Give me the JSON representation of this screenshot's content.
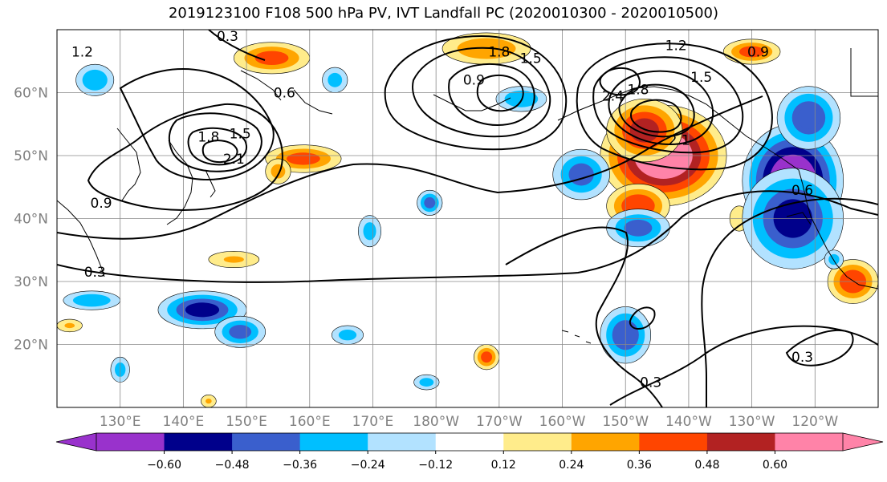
{
  "title": "2019123100 F108 500 hPa PV, IVT Landfall PC (2020010300 - 2020010500)",
  "map": {
    "projection": "PlateCarree",
    "lon_range": [
      120,
      250
    ],
    "lat_range": [
      10,
      70
    ],
    "gridlines": true,
    "lat_ticks": [
      {
        "value": 20,
        "label": "20°N"
      },
      {
        "value": 30,
        "label": "30°N"
      },
      {
        "value": 40,
        "label": "40°N"
      },
      {
        "value": 50,
        "label": "50°N"
      },
      {
        "value": 60,
        "label": "60°N"
      }
    ],
    "lon_ticks": [
      {
        "value": 130,
        "label": "130°E"
      },
      {
        "value": 140,
        "label": "140°E"
      },
      {
        "value": 150,
        "label": "150°E"
      },
      {
        "value": 160,
        "label": "160°E"
      },
      {
        "value": 170,
        "label": "170°E"
      },
      {
        "value": 180,
        "label": "180°W"
      },
      {
        "value": 190,
        "label": "170°W"
      },
      {
        "value": 200,
        "label": "160°W"
      },
      {
        "value": 210,
        "label": "150°W"
      },
      {
        "value": 220,
        "label": "140°W"
      },
      {
        "value": 230,
        "label": "130°W"
      },
      {
        "value": 240,
        "label": "120°W"
      }
    ]
  },
  "colorbar": {
    "levels": [
      -0.72,
      -0.6,
      -0.48,
      -0.36,
      -0.24,
      -0.12,
      0.12,
      0.24,
      0.36,
      0.48,
      0.6,
      0.72
    ],
    "colors": [
      "#9932CC",
      "#00008B",
      "#3A5FCD",
      "#00BFFF",
      "#B2E2FF",
      "#FFFFFF",
      "#FFEC8B",
      "#FFA500",
      "#FF4500",
      "#B22222",
      "#FF83A8"
    ],
    "extend_min_color": "#9932CC",
    "extend_max_color": "#FF83A8",
    "tick_labels": [
      {
        "value": -0.6,
        "label": "−0.60"
      },
      {
        "value": -0.48,
        "label": "−0.48"
      },
      {
        "value": -0.36,
        "label": "−0.36"
      },
      {
        "value": -0.24,
        "label": "−0.24"
      },
      {
        "value": -0.12,
        "label": "−0.12"
      },
      {
        "value": 0.12,
        "label": "0.12"
      },
      {
        "value": 0.24,
        "label": "0.24"
      },
      {
        "value": 0.36,
        "label": "0.36"
      },
      {
        "value": 0.48,
        "label": "0.48"
      },
      {
        "value": 0.6,
        "label": "0.60"
      }
    ]
  },
  "ivt_anomaly_blobs": [
    {
      "lon": 216,
      "lat": 50,
      "rx": 10,
      "ry": 8,
      "value": 0.7
    },
    {
      "lon": 213,
      "lat": 54,
      "rx": 6,
      "ry": 5,
      "value": 0.5
    },
    {
      "lon": 212,
      "lat": 42,
      "rx": 5,
      "ry": 3.5,
      "value": 0.45
    },
    {
      "lon": 159,
      "lat": 49.5,
      "rx": 6,
      "ry": 2.2,
      "value": 0.4
    },
    {
      "lon": 154,
      "lat": 65.5,
      "rx": 6,
      "ry": 2.5,
      "value": 0.4
    },
    {
      "lon": 188,
      "lat": 67,
      "rx": 7,
      "ry": 2.5,
      "value": 0.35
    },
    {
      "lon": 230,
      "lat": 66.5,
      "rx": 4.5,
      "ry": 2,
      "value": 0.4
    },
    {
      "lon": 246,
      "lat": 30,
      "rx": 4,
      "ry": 3.5,
      "value": 0.45
    },
    {
      "lon": 188,
      "lat": 18,
      "rx": 2,
      "ry": 2,
      "value": 0.4
    },
    {
      "lon": 155,
      "lat": 47.5,
      "rx": 2,
      "ry": 2,
      "value": 0.3
    },
    {
      "lon": 148,
      "lat": 33.5,
      "rx": 4,
      "ry": 1.3,
      "value": 0.25
    },
    {
      "lon": 122,
      "lat": 23,
      "rx": 2,
      "ry": 1,
      "value": 0.25
    },
    {
      "lon": 144,
      "lat": 11,
      "rx": 1.2,
      "ry": 1,
      "value": 0.25
    },
    {
      "lon": 228,
      "lat": 40,
      "rx": 1.5,
      "ry": 2,
      "value": 0.2
    },
    {
      "lon": 236.5,
      "lat": 46,
      "rx": 8,
      "ry": 9,
      "value": -0.7
    },
    {
      "lon": 236.5,
      "lat": 40,
      "rx": 8,
      "ry": 8,
      "value": -0.5
    },
    {
      "lon": 239,
      "lat": 56,
      "rx": 5,
      "ry": 5,
      "value": -0.45
    },
    {
      "lon": 203,
      "lat": 47,
      "rx": 4.5,
      "ry": 4,
      "value": -0.4
    },
    {
      "lon": 212,
      "lat": 38.5,
      "rx": 5,
      "ry": 3,
      "value": -0.4
    },
    {
      "lon": 210,
      "lat": 21.5,
      "rx": 4,
      "ry": 4.5,
      "value": -0.45
    },
    {
      "lon": 143,
      "lat": 25.5,
      "rx": 7,
      "ry": 3,
      "value": -0.5
    },
    {
      "lon": 149,
      "lat": 22,
      "rx": 4,
      "ry": 2.5,
      "value": -0.4
    },
    {
      "lon": 125.5,
      "lat": 27,
      "rx": 4.5,
      "ry": 1.5,
      "value": -0.35
    },
    {
      "lon": 126,
      "lat": 62,
      "rx": 3,
      "ry": 2.5,
      "value": -0.35
    },
    {
      "lon": 193.5,
      "lat": 59,
      "rx": 4,
      "ry": 2,
      "value": -0.35
    },
    {
      "lon": 164,
      "lat": 62,
      "rx": 2,
      "ry": 2,
      "value": -0.3
    },
    {
      "lon": 179,
      "lat": 42.5,
      "rx": 2,
      "ry": 2,
      "value": -0.4
    },
    {
      "lon": 169.5,
      "lat": 38,
      "rx": 1.8,
      "ry": 2.5,
      "value": -0.3
    },
    {
      "lon": 178.5,
      "lat": 14,
      "rx": 2,
      "ry": 1.2,
      "value": -0.3
    },
    {
      "lon": 130,
      "lat": 16,
      "rx": 1.5,
      "ry": 2,
      "value": -0.3
    },
    {
      "lon": 166,
      "lat": 21.5,
      "rx": 2.5,
      "ry": 1.5,
      "value": -0.3
    },
    {
      "lon": 243,
      "lat": 33.5,
      "rx": 1.5,
      "ry": 1.5,
      "value": -0.3
    }
  ],
  "pv_contour_labels": [
    {
      "lon": 124,
      "lat": 66,
      "text": "1.2"
    },
    {
      "lon": 147,
      "lat": 68.5,
      "text": "0.3"
    },
    {
      "lon": 156,
      "lat": 59.5,
      "text": "0.6"
    },
    {
      "lon": 144,
      "lat": 52.5,
      "text": "1.8"
    },
    {
      "lon": 149,
      "lat": 53,
      "text": "1.5"
    },
    {
      "lon": 148,
      "lat": 49,
      "text": "2.1"
    },
    {
      "lon": 127,
      "lat": 42,
      "text": "0.9"
    },
    {
      "lon": 126,
      "lat": 31,
      "text": "0.3"
    },
    {
      "lon": 186,
      "lat": 61.5,
      "text": "0.9"
    },
    {
      "lon": 195,
      "lat": 65,
      "text": "1.5"
    },
    {
      "lon": 190,
      "lat": 66,
      "text": "1.8"
    },
    {
      "lon": 218,
      "lat": 67,
      "text": "1.2"
    },
    {
      "lon": 222,
      "lat": 62,
      "text": "1.5"
    },
    {
      "lon": 212,
      "lat": 60,
      "text": "1.8"
    },
    {
      "lon": 208,
      "lat": 59,
      "text": "2.4"
    },
    {
      "lon": 218.5,
      "lat": 52,
      "text": "2.1"
    },
    {
      "lon": 238,
      "lat": 44,
      "text": "0.6"
    },
    {
      "lon": 231,
      "lat": 66,
      "text": "0.9"
    },
    {
      "lon": 214,
      "lat": 13.5,
      "text": "0.3"
    },
    {
      "lon": 238,
      "lat": 17.5,
      "text": "0.3"
    }
  ]
}
